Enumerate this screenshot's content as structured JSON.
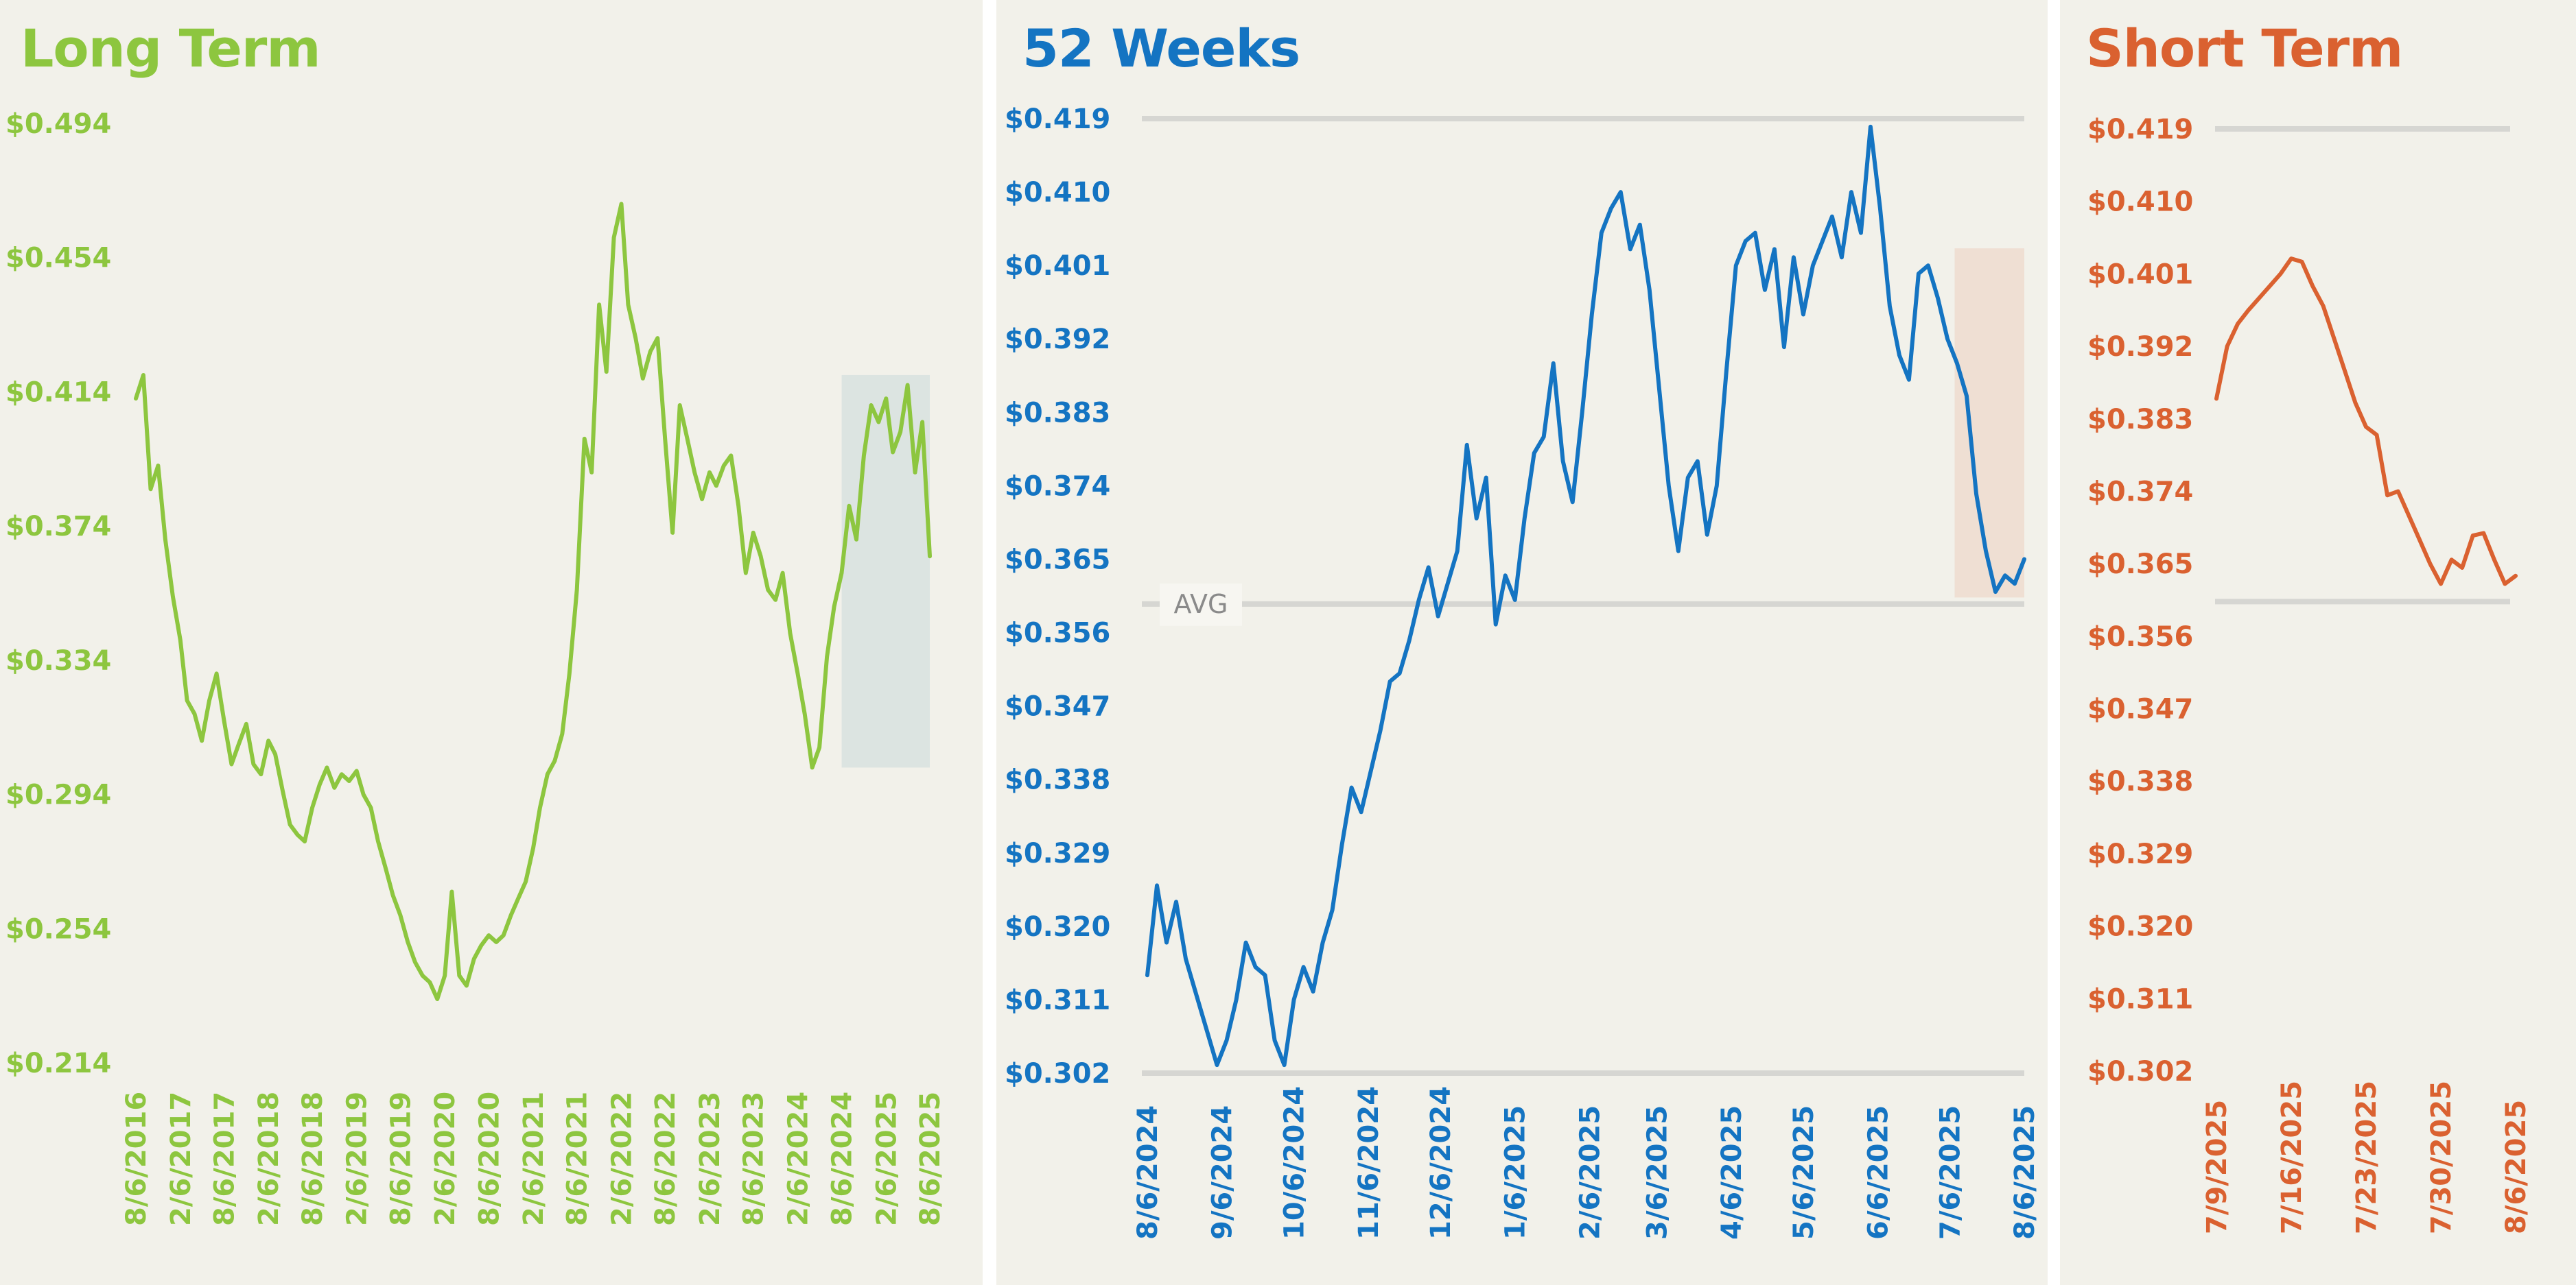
{
  "colors": {
    "long_term": "#8dc63f",
    "weeks_52": "#1474c2",
    "short_term": "#da6130",
    "gridline": "#d6d6d2",
    "highlight_long": "#dce4e1",
    "highlight_52": "#efdfd3",
    "panel_background": "#f2f1ea"
  },
  "chart_data": [
    {
      "id": "long",
      "type": "line",
      "title": "Long Term",
      "ylim": [
        0.214,
        0.494
      ],
      "yticks": [
        0.214,
        0.254,
        0.294,
        0.334,
        0.374,
        0.414,
        0.454,
        0.494
      ],
      "ytick_labels": [
        "$0.214",
        "$0.254",
        "$0.294",
        "$0.334",
        "$0.374",
        "$0.414",
        "$0.454",
        "$0.494"
      ],
      "xlim": [
        "2016-08-06",
        "2025-08-06"
      ],
      "xticks": [
        "2016-08-06",
        "2017-02-06",
        "2017-08-06",
        "2018-02-06",
        "2018-08-06",
        "2019-02-06",
        "2019-08-06",
        "2020-02-06",
        "2020-08-06",
        "2021-02-06",
        "2021-08-06",
        "2022-02-06",
        "2022-08-06",
        "2023-02-06",
        "2023-08-06",
        "2024-02-06",
        "2024-08-06",
        "2025-02-06",
        "2025-08-06"
      ],
      "xtick_labels": [
        "8/6/2016",
        "2/6/2017",
        "8/6/2017",
        "2/6/2018",
        "8/6/2018",
        "2/6/2019",
        "8/6/2019",
        "2/6/2020",
        "8/6/2020",
        "2/6/2021",
        "8/6/2021",
        "2/6/2022",
        "8/6/2022",
        "2/6/2023",
        "8/6/2023",
        "2/6/2024",
        "8/6/2024",
        "2/6/2025",
        "8/6/2025"
      ],
      "grid": false,
      "highlight": {
        "x": [
          "2024-08-06",
          "2025-08-06"
        ],
        "y": [
          0.302,
          0.419
        ]
      },
      "series": [
        {
          "x": [
            "2016-08-06",
            "2016-09-06",
            "2016-10-06",
            "2016-11-06",
            "2016-12-06",
            "2017-01-06",
            "2017-02-06",
            "2017-03-06",
            "2017-04-06",
            "2017-05-06",
            "2017-06-06",
            "2017-07-06",
            "2017-08-06",
            "2017-09-06",
            "2017-10-06",
            "2017-11-06",
            "2017-12-06",
            "2018-01-06",
            "2018-02-06",
            "2018-03-06",
            "2018-04-06",
            "2018-05-06",
            "2018-06-06",
            "2018-07-06",
            "2018-08-06",
            "2018-09-06",
            "2018-10-06",
            "2018-11-06",
            "2018-12-06",
            "2019-01-06",
            "2019-02-06",
            "2019-03-06",
            "2019-04-06",
            "2019-05-06",
            "2019-06-06",
            "2019-07-06",
            "2019-08-06",
            "2019-09-06",
            "2019-10-06",
            "2019-11-06",
            "2019-12-06",
            "2020-01-06",
            "2020-02-06",
            "2020-03-06",
            "2020-04-06",
            "2020-05-06",
            "2020-06-06",
            "2020-07-06",
            "2020-08-06",
            "2020-09-06",
            "2020-10-06",
            "2020-11-06",
            "2020-12-06",
            "2021-01-06",
            "2021-02-06",
            "2021-03-06",
            "2021-04-06",
            "2021-05-06",
            "2021-06-06",
            "2021-07-06",
            "2021-08-06",
            "2021-09-06",
            "2021-10-06",
            "2021-11-06",
            "2021-12-06",
            "2022-01-06",
            "2022-02-06",
            "2022-03-06",
            "2022-04-06",
            "2022-05-06",
            "2022-06-06",
            "2022-07-06",
            "2022-08-06",
            "2022-09-06",
            "2022-10-06",
            "2022-11-06",
            "2022-12-06",
            "2023-01-06",
            "2023-02-06",
            "2023-03-06",
            "2023-04-06",
            "2023-05-06",
            "2023-06-06",
            "2023-07-06",
            "2023-08-06",
            "2023-09-06",
            "2023-10-06",
            "2023-11-06",
            "2023-12-06",
            "2024-01-06",
            "2024-02-06",
            "2024-03-06",
            "2024-04-06",
            "2024-05-06",
            "2024-06-06",
            "2024-07-06",
            "2024-08-06",
            "2024-09-06",
            "2024-10-06",
            "2024-11-06",
            "2024-12-06",
            "2025-01-06",
            "2025-02-06",
            "2025-03-06",
            "2025-04-06",
            "2025-05-06",
            "2025-06-06",
            "2025-07-06",
            "2025-08-06"
          ],
          "y": [
            0.412,
            0.419,
            0.385,
            0.392,
            0.37,
            0.353,
            0.34,
            0.322,
            0.318,
            0.31,
            0.322,
            0.33,
            0.316,
            0.303,
            0.309,
            0.315,
            0.303,
            0.3,
            0.31,
            0.306,
            0.295,
            0.285,
            0.282,
            0.28,
            0.29,
            0.297,
            0.302,
            0.296,
            0.3,
            0.298,
            0.301,
            0.294,
            0.29,
            0.28,
            0.272,
            0.264,
            0.258,
            0.25,
            0.244,
            0.24,
            0.238,
            0.233,
            0.24,
            0.265,
            0.24,
            0.237,
            0.245,
            0.249,
            0.252,
            0.25,
            0.252,
            0.258,
            0.263,
            0.268,
            0.278,
            0.29,
            0.3,
            0.304,
            0.312,
            0.33,
            0.355,
            0.4,
            0.39,
            0.44,
            0.42,
            0.46,
            0.47,
            0.44,
            0.43,
            0.418,
            0.426,
            0.43,
            0.4,
            0.372,
            0.41,
            0.4,
            0.39,
            0.382,
            0.39,
            0.386,
            0.392,
            0.395,
            0.38,
            0.36,
            0.372,
            0.365,
            0.355,
            0.352,
            0.36,
            0.342,
            0.33,
            0.318,
            0.302,
            0.308,
            0.335,
            0.35,
            0.36,
            0.38,
            0.37,
            0.395,
            0.41,
            0.405,
            0.412,
            0.396,
            0.402,
            0.416,
            0.39,
            0.405,
            0.365
          ]
        }
      ]
    },
    {
      "id": "w52",
      "type": "line",
      "title": "52 Weeks",
      "ylim": [
        0.302,
        0.419
      ],
      "yticks": [
        0.302,
        0.311,
        0.32,
        0.329,
        0.338,
        0.347,
        0.356,
        0.365,
        0.374,
        0.383,
        0.392,
        0.401,
        0.41,
        0.419
      ],
      "ytick_labels": [
        "$0.302",
        "$0.311",
        "$0.320",
        "$0.329",
        "$0.338",
        "$0.347",
        "$0.356",
        "$0.365",
        "$0.374",
        "$0.383",
        "$0.392",
        "$0.401",
        "$0.410",
        "$0.419"
      ],
      "xlim": [
        "2024-08-06",
        "2025-08-06"
      ],
      "xticks": [
        "2024-08-06",
        "2024-09-06",
        "2024-10-06",
        "2024-11-06",
        "2024-12-06",
        "2025-01-06",
        "2025-02-06",
        "2025-03-06",
        "2025-04-06",
        "2025-05-06",
        "2025-06-06",
        "2025-07-06",
        "2025-08-06"
      ],
      "xtick_labels": [
        "8/6/2024",
        "9/6/2024",
        "10/6/2024",
        "11/6/2024",
        "12/6/2024",
        "1/6/2025",
        "2/6/2025",
        "3/6/2025",
        "4/6/2025",
        "5/6/2025",
        "6/6/2025",
        "7/6/2025",
        "8/6/2025"
      ],
      "grid": false,
      "reference_lines": {
        "max": 0.419,
        "avg": 0.3595,
        "min": 0.302
      },
      "avg_label": "AVG",
      "highlight": {
        "x": [
          "2025-07-08",
          "2025-08-06"
        ],
        "y": [
          0.3603,
          0.4031
        ]
      },
      "series": [
        {
          "x": [
            "2024-08-06",
            "2024-08-10",
            "2024-08-14",
            "2024-08-18",
            "2024-08-22",
            "2024-08-26",
            "2024-08-30",
            "2024-09-04",
            "2024-09-08",
            "2024-09-12",
            "2024-09-16",
            "2024-09-20",
            "2024-09-24",
            "2024-09-28",
            "2024-10-02",
            "2024-10-06",
            "2024-10-10",
            "2024-10-14",
            "2024-10-18",
            "2024-10-22",
            "2024-10-26",
            "2024-10-30",
            "2024-11-03",
            "2024-11-07",
            "2024-11-11",
            "2024-11-15",
            "2024-11-19",
            "2024-11-23",
            "2024-11-27",
            "2024-12-01",
            "2024-12-05",
            "2024-12-09",
            "2024-12-13",
            "2024-12-17",
            "2024-12-21",
            "2024-12-25",
            "2024-12-29",
            "2025-01-02",
            "2025-01-06",
            "2025-01-10",
            "2025-01-14",
            "2025-01-18",
            "2025-01-22",
            "2025-01-26",
            "2025-01-30",
            "2025-02-03",
            "2025-02-07",
            "2025-02-11",
            "2025-02-15",
            "2025-02-19",
            "2025-02-23",
            "2025-02-27",
            "2025-03-03",
            "2025-03-07",
            "2025-03-11",
            "2025-03-15",
            "2025-03-19",
            "2025-03-23",
            "2025-03-27",
            "2025-03-31",
            "2025-04-04",
            "2025-04-08",
            "2025-04-12",
            "2025-04-16",
            "2025-04-20",
            "2025-04-24",
            "2025-04-28",
            "2025-05-02",
            "2025-05-06",
            "2025-05-10",
            "2025-05-14",
            "2025-05-18",
            "2025-05-22",
            "2025-05-26",
            "2025-05-30",
            "2025-06-03",
            "2025-06-07",
            "2025-06-11",
            "2025-06-15",
            "2025-06-19",
            "2025-06-23",
            "2025-06-27",
            "2025-07-01",
            "2025-07-05",
            "2025-07-09",
            "2025-07-13",
            "2025-07-17",
            "2025-07-21",
            "2025-07-25",
            "2025-07-29",
            "2025-08-02",
            "2025-08-06"
          ],
          "y": [
            0.314,
            0.325,
            0.318,
            0.323,
            0.316,
            0.312,
            0.308,
            0.303,
            0.306,
            0.311,
            0.318,
            0.315,
            0.314,
            0.306,
            0.303,
            0.311,
            0.315,
            0.312,
            0.318,
            0.322,
            0.33,
            0.337,
            0.334,
            0.339,
            0.344,
            0.35,
            0.351,
            0.355,
            0.36,
            0.364,
            0.358,
            0.362,
            0.366,
            0.379,
            0.37,
            0.375,
            0.357,
            0.363,
            0.36,
            0.37,
            0.378,
            0.38,
            0.389,
            0.377,
            0.372,
            0.383,
            0.395,
            0.405,
            0.408,
            0.41,
            0.403,
            0.406,
            0.398,
            0.386,
            0.374,
            0.366,
            0.375,
            0.377,
            0.368,
            0.374,
            0.388,
            0.401,
            0.404,
            0.405,
            0.398,
            0.403,
            0.391,
            0.402,
            0.395,
            0.401,
            0.404,
            0.407,
            0.402,
            0.41,
            0.405,
            0.418,
            0.408,
            0.396,
            0.39,
            0.387,
            0.4,
            0.401,
            0.397,
            0.392,
            0.389,
            0.385,
            0.373,
            0.366,
            0.361,
            0.363,
            0.362,
            0.365
          ]
        }
      ]
    },
    {
      "id": "short",
      "type": "line",
      "title": "Short Term",
      "ylim": [
        0.302,
        0.419
      ],
      "yticks": [
        0.302,
        0.311,
        0.32,
        0.329,
        0.338,
        0.347,
        0.356,
        0.365,
        0.374,
        0.383,
        0.392,
        0.401,
        0.41,
        0.419
      ],
      "ytick_labels": [
        "$0.302",
        "$0.311",
        "$0.320",
        "$0.329",
        "$0.338",
        "$0.347",
        "$0.356",
        "$0.365",
        "$0.374",
        "$0.383",
        "$0.392",
        "$0.401",
        "$0.410",
        "$0.419"
      ],
      "xlim": [
        "2025-07-09",
        "2025-08-06"
      ],
      "xticks": [
        "2025-07-09",
        "2025-07-16",
        "2025-07-23",
        "2025-07-30",
        "2025-08-06"
      ],
      "xtick_labels": [
        "7/9/2025",
        "7/16/2025",
        "7/23/2025",
        "7/30/2025",
        "8/6/2025"
      ],
      "grid": false,
      "reference_lines": {
        "max": 0.419,
        "min": 0.3603
      },
      "series": [
        {
          "x": [
            "2025-07-09",
            "2025-07-10",
            "2025-07-11",
            "2025-07-12",
            "2025-07-13",
            "2025-07-14",
            "2025-07-15",
            "2025-07-16",
            "2025-07-17",
            "2025-07-18",
            "2025-07-19",
            "2025-07-20",
            "2025-07-21",
            "2025-07-22",
            "2025-07-23",
            "2025-07-24",
            "2025-07-25",
            "2025-07-26",
            "2025-07-27",
            "2025-07-28",
            "2025-07-29",
            "2025-07-30",
            "2025-07-31",
            "2025-08-01",
            "2025-08-02",
            "2025-08-03",
            "2025-08-04",
            "2025-08-05",
            "2025-08-06"
          ],
          "y": [
            0.3855,
            0.392,
            0.3948,
            0.3965,
            0.398,
            0.3995,
            0.401,
            0.4029,
            0.4025,
            0.3995,
            0.397,
            0.393,
            0.389,
            0.385,
            0.382,
            0.381,
            0.3735,
            0.374,
            0.371,
            0.368,
            0.365,
            0.3625,
            0.3655,
            0.3645,
            0.3685,
            0.3688,
            0.3655,
            0.3625,
            0.3635
          ]
        }
      ]
    }
  ]
}
